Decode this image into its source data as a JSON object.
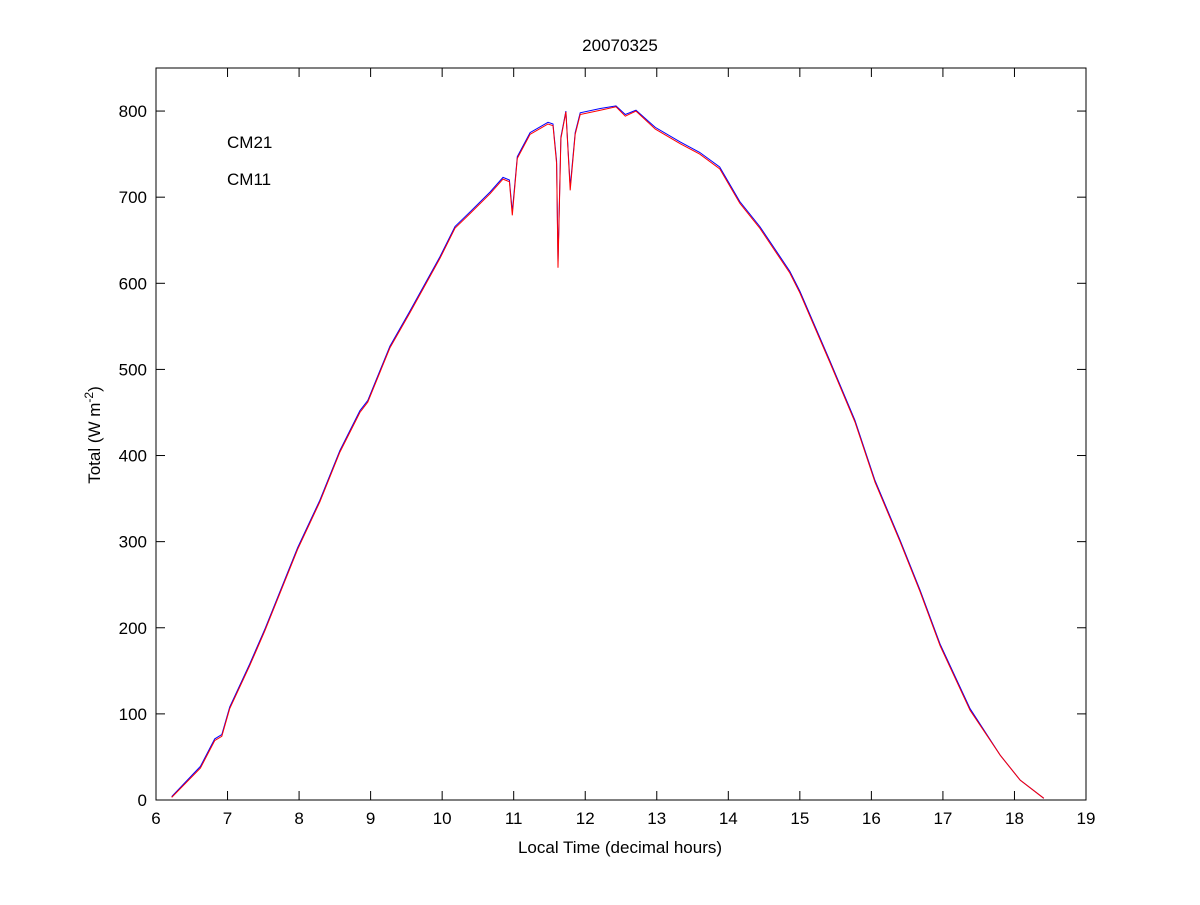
{
  "chart_data": {
    "type": "line",
    "title": "20070325",
    "xlabel": "Local Time (decimal hours)",
    "ylabel_main": "Total (W m",
    "ylabel_sup": "-2",
    "ylabel_close": ")",
    "xlim": [
      6,
      19
    ],
    "ylim": [
      0,
      850
    ],
    "xticks": [
      6,
      7,
      8,
      9,
      10,
      11,
      12,
      13,
      14,
      15,
      16,
      17,
      18,
      19
    ],
    "yticks": [
      0,
      100,
      200,
      300,
      400,
      500,
      600,
      700,
      800
    ],
    "grid": false,
    "legend_placement": "top-left",
    "x": [
      6.22,
      6.62,
      6.82,
      6.92,
      7.03,
      7.31,
      7.52,
      7.98,
      8.29,
      8.57,
      8.85,
      8.96,
      9.27,
      9.55,
      9.97,
      10.18,
      10.39,
      10.67,
      10.85,
      10.94,
      10.98,
      11.05,
      11.23,
      11.48,
      11.55,
      11.6,
      11.62,
      11.66,
      11.73,
      11.79,
      11.86,
      11.93,
      12.21,
      12.43,
      12.56,
      12.71,
      12.98,
      13.33,
      13.6,
      13.88,
      14.16,
      14.44,
      14.86,
      15.0,
      15.42,
      15.77,
      16.05,
      16.4,
      16.68,
      16.96,
      17.38,
      17.8,
      18.08,
      18.41
    ],
    "series": [
      {
        "name": "CM21",
        "color": "#0000ff",
        "values": [
          4,
          39,
          71,
          76,
          108,
          158,
          198,
          293,
          348,
          406,
          452,
          464,
          527,
          568,
          631,
          666,
          683,
          706,
          723,
          720,
          683,
          747,
          775,
          787,
          785,
          742,
          625,
          770,
          800,
          712,
          775,
          798,
          803,
          806,
          796,
          801,
          781,
          764,
          752,
          735,
          695,
          666,
          614,
          591,
          510,
          441,
          371,
          302,
          244,
          181,
          106,
          52,
          23,
          2
        ]
      },
      {
        "name": "CM11",
        "color": "#ff0000",
        "values": [
          3,
          37,
          69,
          74,
          106,
          156,
          196,
          291,
          346,
          404,
          450,
          462,
          525,
          566,
          629,
          664,
          681,
          704,
          721,
          718,
          679,
          745,
          773,
          785,
          783,
          739,
          618,
          768,
          799,
          708,
          773,
          796,
          801,
          805,
          794,
          800,
          779,
          762,
          750,
          733,
          693,
          664,
          612,
          589,
          508,
          439,
          369,
          300,
          242,
          179,
          104,
          52,
          23,
          2
        ]
      }
    ]
  }
}
